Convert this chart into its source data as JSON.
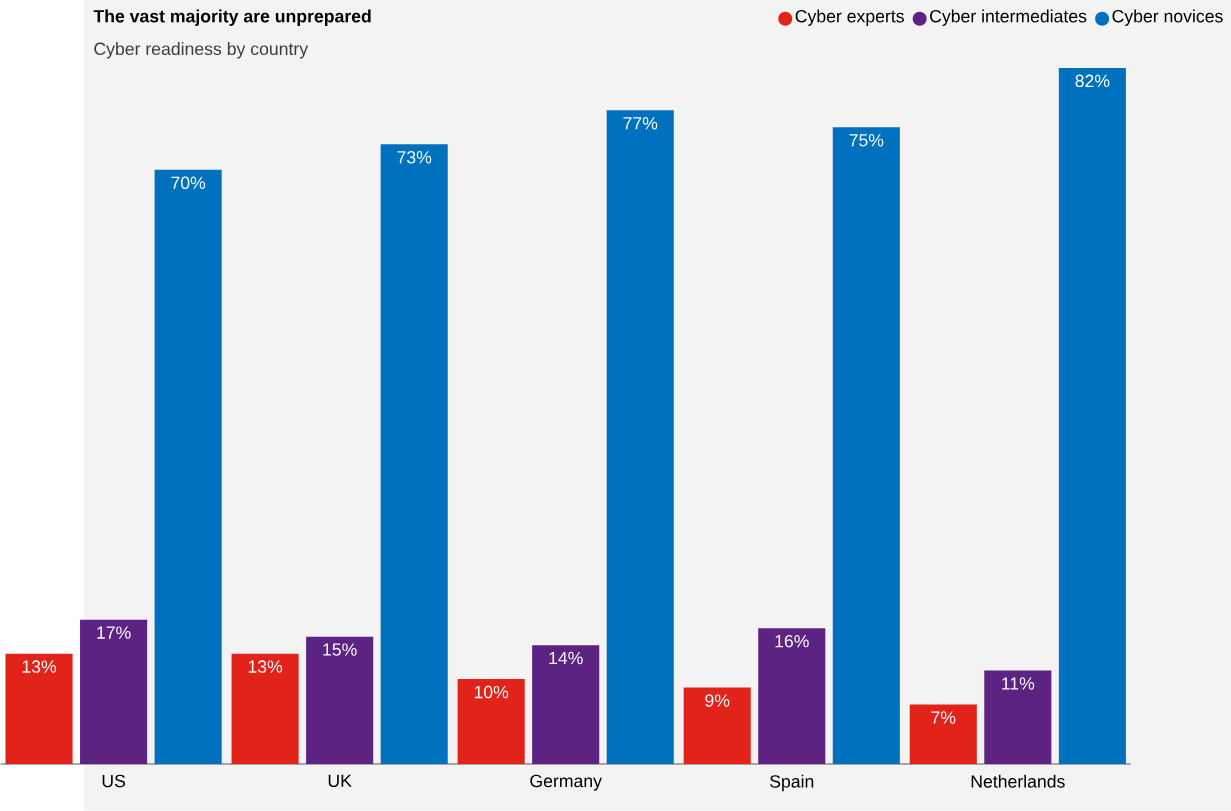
{
  "chart_data": {
    "type": "bar",
    "title": "The vast majority are unprepared",
    "subtitle": "Cyber readiness by country",
    "categories": [
      "US",
      "UK",
      "Germany",
      "Spain",
      "Netherlands"
    ],
    "legend": "top right",
    "series": [
      {
        "name": "Cyber experts",
        "color": "#e2231a",
        "values": [
          13,
          13,
          10,
          9,
          7
        ],
        "value_labels": [
          "13%",
          "13%",
          "10%",
          "9%",
          "7%"
        ]
      },
      {
        "name": "Cyber intermediates",
        "color": "#5c2382",
        "values": [
          17,
          15,
          14,
          16,
          11
        ],
        "value_labels": [
          "17%",
          "15%",
          "14%",
          "16%",
          "11%"
        ]
      },
      {
        "name": "Cyber novices",
        "color": "#0071bf",
        "values": [
          70,
          73,
          77,
          75,
          82
        ],
        "value_labels": [
          "70%",
          "73%",
          "77%",
          "75%",
          "82%"
        ]
      }
    ]
  }
}
